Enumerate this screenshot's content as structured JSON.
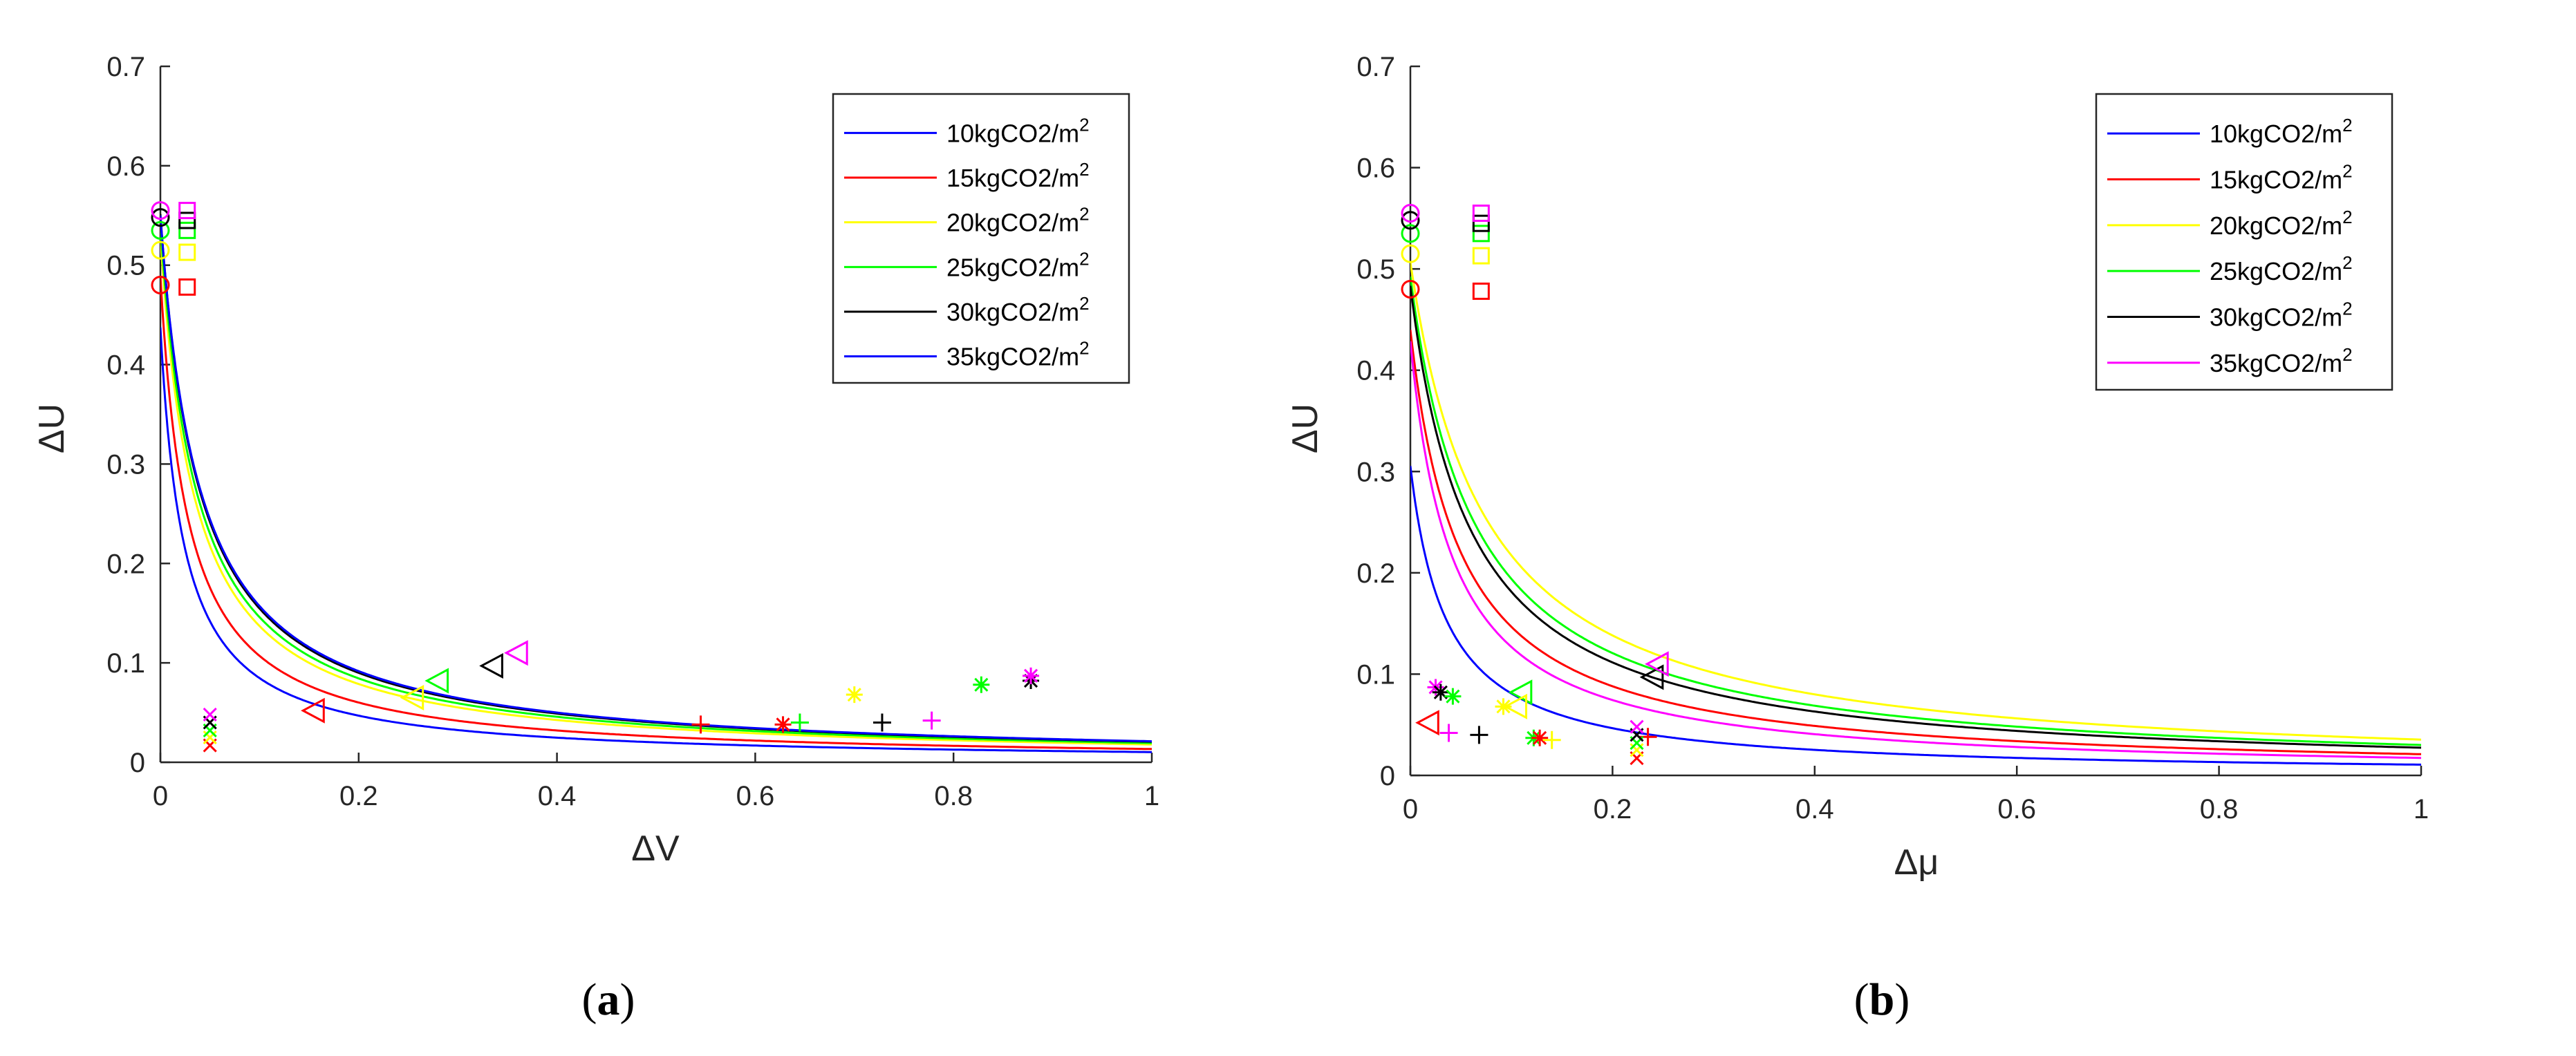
{
  "chart_data": [
    {
      "type": "line",
      "panel_label": "(a)",
      "caption_prefix": "(",
      "caption_letter": "a",
      "caption_suffix": ")",
      "xlabel": "ΔV",
      "ylabel": "ΔU",
      "xlim": [
        0,
        1
      ],
      "ylim": [
        0,
        0.7
      ],
      "xticks": [
        "0",
        "0.2",
        "0.4",
        "0.6",
        "0.8",
        "1"
      ],
      "yticks": [
        "0",
        "0.1",
        "0.2",
        "0.3",
        "0.4",
        "0.5",
        "0.6",
        "0.7"
      ],
      "xtick_values": [
        0,
        0.2,
        0.4,
        0.6,
        0.8,
        1
      ],
      "ytick_values": [
        0,
        0.1,
        0.2,
        0.3,
        0.4,
        0.5,
        0.6,
        0.7
      ],
      "legend_position": "top-right",
      "series": [
        {
          "name": "10kgCO2/m",
          "sup": "2",
          "color": "#0000FF",
          "curve_k": 0.0105,
          "curve_x0": 0.024
        },
        {
          "name": "15kgCO2/m",
          "sup": "2",
          "color": "#FF0000",
          "curve_k": 0.0137,
          "curve_x0": 0.028
        },
        {
          "name": "20kgCO2/m",
          "sup": "2",
          "color": "#FFFF00",
          "curve_k": 0.0185,
          "curve_x0": 0.035
        },
        {
          "name": "25kgCO2/m",
          "sup": "2",
          "color": "#00FF00",
          "curve_k": 0.02,
          "curve_x0": 0.037
        },
        {
          "name": "30kgCO2/m",
          "sup": "2",
          "color": "#000000",
          "curve_k": 0.0215,
          "curve_x0": 0.039
        },
        {
          "name": "35kgCO2/m",
          "sup": "2",
          "color": "#0000FF",
          "curve_k": 0.022,
          "curve_x0": 0.04
        }
      ],
      "scatter": [
        {
          "marker": "circle",
          "color": "#FF0000",
          "x": 0.0,
          "y": 0.48
        },
        {
          "marker": "circle",
          "color": "#FFFF00",
          "x": 0.0,
          "y": 0.515
        },
        {
          "marker": "circle",
          "color": "#00FF00",
          "x": 0.0,
          "y": 0.535
        },
        {
          "marker": "circle",
          "color": "#000000",
          "x": 0.0,
          "y": 0.548
        },
        {
          "marker": "circle",
          "color": "#FF00FF",
          "x": 0.0,
          "y": 0.555
        },
        {
          "marker": "square",
          "color": "#FF0000",
          "x": 0.027,
          "y": 0.478
        },
        {
          "marker": "square",
          "color": "#FFFF00",
          "x": 0.027,
          "y": 0.513
        },
        {
          "marker": "square",
          "color": "#00FF00",
          "x": 0.027,
          "y": 0.535
        },
        {
          "marker": "square",
          "color": "#000000",
          "x": 0.027,
          "y": 0.545
        },
        {
          "marker": "square",
          "color": "#FF00FF",
          "x": 0.027,
          "y": 0.555
        },
        {
          "marker": "x",
          "color": "#FF0000",
          "x": 0.05,
          "y": 0.017
        },
        {
          "marker": "x",
          "color": "#FFFF00",
          "x": 0.05,
          "y": 0.025
        },
        {
          "marker": "x",
          "color": "#00FF00",
          "x": 0.05,
          "y": 0.032
        },
        {
          "marker": "x",
          "color": "#000000",
          "x": 0.05,
          "y": 0.04
        },
        {
          "marker": "x",
          "color": "#FF00FF",
          "x": 0.05,
          "y": 0.048
        },
        {
          "marker": "triangle-left",
          "color": "#FF0000",
          "x": 0.155,
          "y": 0.052
        },
        {
          "marker": "triangle-left",
          "color": "#FFFF00",
          "x": 0.255,
          "y": 0.065
        },
        {
          "marker": "triangle-left",
          "color": "#00FF00",
          "x": 0.28,
          "y": 0.082
        },
        {
          "marker": "triangle-left",
          "color": "#000000",
          "x": 0.335,
          "y": 0.097
        },
        {
          "marker": "triangle-left",
          "color": "#FF00FF",
          "x": 0.36,
          "y": 0.11
        },
        {
          "marker": "plus",
          "color": "#FF0000",
          "x": 0.545,
          "y": 0.038
        },
        {
          "marker": "plus",
          "color": "#00FF00",
          "x": 0.645,
          "y": 0.04
        },
        {
          "marker": "plus",
          "color": "#000000",
          "x": 0.728,
          "y": 0.04
        },
        {
          "marker": "plus",
          "color": "#FF00FF",
          "x": 0.778,
          "y": 0.042
        },
        {
          "marker": "asterisk",
          "color": "#FF0000",
          "x": 0.628,
          "y": 0.038
        },
        {
          "marker": "asterisk",
          "color": "#FFFF00",
          "x": 0.7,
          "y": 0.068
        },
        {
          "marker": "asterisk",
          "color": "#00FF00",
          "x": 0.828,
          "y": 0.078
        },
        {
          "marker": "asterisk",
          "color": "#000000",
          "x": 0.878,
          "y": 0.082
        },
        {
          "marker": "asterisk",
          "color": "#FF00FF",
          "x": 0.878,
          "y": 0.087
        }
      ]
    },
    {
      "type": "line",
      "panel_label": "(b)",
      "caption_prefix": "(",
      "caption_letter": "b",
      "caption_suffix": ")",
      "xlabel": "Δμ",
      "ylabel": "ΔU",
      "xlim": [
        0,
        1
      ],
      "ylim": [
        0,
        0.7
      ],
      "xticks": [
        "0",
        "0.2",
        "0.4",
        "0.6",
        "0.8",
        "1"
      ],
      "yticks": [
        "0",
        "0.1",
        "0.2",
        "0.3",
        "0.4",
        "0.5",
        "0.6",
        "0.7"
      ],
      "xtick_values": [
        0,
        0.2,
        0.4,
        0.6,
        0.8,
        1
      ],
      "ytick_values": [
        0,
        0.1,
        0.2,
        0.3,
        0.4,
        0.5,
        0.6,
        0.7
      ],
      "legend_position": "top-right",
      "series": [
        {
          "name": "10kgCO2/m",
          "sup": "2",
          "color": "#0000FF",
          "curve_k": 0.011,
          "curve_x0": 0.036
        },
        {
          "name": "15kgCO2/m",
          "sup": "2",
          "color": "#FF0000",
          "curve_k": 0.022,
          "curve_x0": 0.05
        },
        {
          "name": "20kgCO2/m",
          "sup": "2",
          "color": "#FFFF00",
          "curve_k": 0.038,
          "curve_x0": 0.075
        },
        {
          "name": "25kgCO2/m",
          "sup": "2",
          "color": "#00FF00",
          "curve_k": 0.032,
          "curve_x0": 0.065
        },
        {
          "name": "30kgCO2/m",
          "sup": "2",
          "color": "#000000",
          "curve_k": 0.029,
          "curve_x0": 0.06
        },
        {
          "name": "35kgCO2/m",
          "sup": "2",
          "color": "#FF00FF",
          "curve_k": 0.018,
          "curve_x0": 0.042
        }
      ],
      "scatter": [
        {
          "marker": "circle",
          "color": "#FF0000",
          "x": 0.0,
          "y": 0.48
        },
        {
          "marker": "circle",
          "color": "#FFFF00",
          "x": 0.0,
          "y": 0.515
        },
        {
          "marker": "circle",
          "color": "#00FF00",
          "x": 0.0,
          "y": 0.535
        },
        {
          "marker": "circle",
          "color": "#000000",
          "x": 0.0,
          "y": 0.548
        },
        {
          "marker": "circle",
          "color": "#FF00FF",
          "x": 0.0,
          "y": 0.555
        },
        {
          "marker": "square",
          "color": "#FF0000",
          "x": 0.07,
          "y": 0.478
        },
        {
          "marker": "square",
          "color": "#FFFF00",
          "x": 0.07,
          "y": 0.513
        },
        {
          "marker": "square",
          "color": "#00FF00",
          "x": 0.07,
          "y": 0.535
        },
        {
          "marker": "square",
          "color": "#000000",
          "x": 0.07,
          "y": 0.545
        },
        {
          "marker": "square",
          "color": "#FF00FF",
          "x": 0.07,
          "y": 0.555
        },
        {
          "marker": "triangle-left",
          "color": "#FF0000",
          "x": 0.018,
          "y": 0.052
        },
        {
          "marker": "triangle-left",
          "color": "#00FF00",
          "x": 0.11,
          "y": 0.082
        },
        {
          "marker": "triangle-left",
          "color": "#FFFF00",
          "x": 0.105,
          "y": 0.068
        },
        {
          "marker": "triangle-left",
          "color": "#000000",
          "x": 0.24,
          "y": 0.097
        },
        {
          "marker": "triangle-left",
          "color": "#FF00FF",
          "x": 0.245,
          "y": 0.11
        },
        {
          "marker": "asterisk",
          "color": "#FF00FF",
          "x": 0.025,
          "y": 0.087
        },
        {
          "marker": "asterisk",
          "color": "#000000",
          "x": 0.03,
          "y": 0.082
        },
        {
          "marker": "asterisk",
          "color": "#00FF00",
          "x": 0.042,
          "y": 0.078
        },
        {
          "marker": "asterisk",
          "color": "#FFFF00",
          "x": 0.092,
          "y": 0.068
        },
        {
          "marker": "asterisk",
          "color": "#00FF00",
          "x": 0.122,
          "y": 0.037
        },
        {
          "marker": "asterisk",
          "color": "#FF0000",
          "x": 0.128,
          "y": 0.037
        },
        {
          "marker": "plus",
          "color": "#FF00FF",
          "x": 0.038,
          "y": 0.042
        },
        {
          "marker": "plus",
          "color": "#000000",
          "x": 0.068,
          "y": 0.04
        },
        {
          "marker": "plus",
          "color": "#FFFF00",
          "x": 0.14,
          "y": 0.035
        },
        {
          "marker": "plus",
          "color": "#FF0000",
          "x": 0.235,
          "y": 0.038
        },
        {
          "marker": "x",
          "color": "#FF0000",
          "x": 0.224,
          "y": 0.017
        },
        {
          "marker": "x",
          "color": "#FFFF00",
          "x": 0.224,
          "y": 0.025
        },
        {
          "marker": "x",
          "color": "#00FF00",
          "x": 0.224,
          "y": 0.032
        },
        {
          "marker": "x",
          "color": "#000000",
          "x": 0.224,
          "y": 0.04
        },
        {
          "marker": "x",
          "color": "#FF00FF",
          "x": 0.224,
          "y": 0.048
        }
      ]
    }
  ]
}
